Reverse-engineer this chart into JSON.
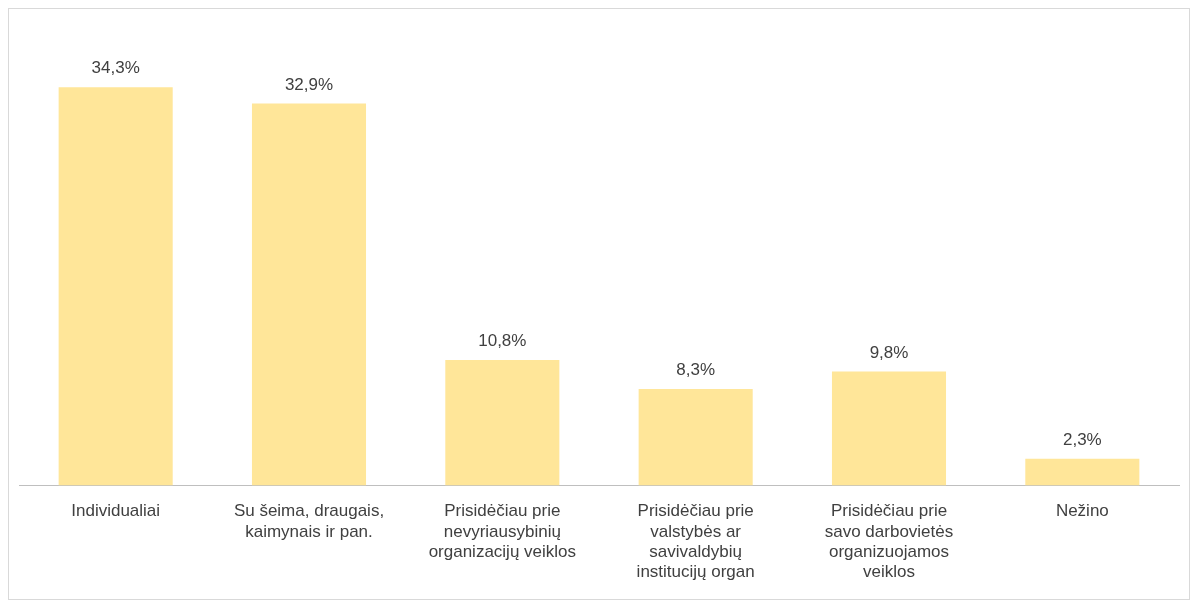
{
  "chart_data": {
    "type": "bar",
    "categories": [
      "Individualiai",
      "Su šeima, draugais, kaimynais ir pan.",
      "Prisidėčiau prie nevyriausybinių organizacijų veiklos",
      "Prisidėčiau prie valstybės ar savivaldybių institucijų organ",
      "Prisidėčiau prie savo darbovietės organizuojamos veiklos",
      "Nežino"
    ],
    "values": [
      34.3,
      32.9,
      10.8,
      8.3,
      9.8,
      2.3
    ],
    "value_labels": [
      "34,3%",
      "32,9%",
      "10,8%",
      "8,3%",
      "9,8%",
      "2,3%"
    ],
    "color": "#ffe699",
    "grid": false,
    "legend": false,
    "tick_labels": "x"
  }
}
